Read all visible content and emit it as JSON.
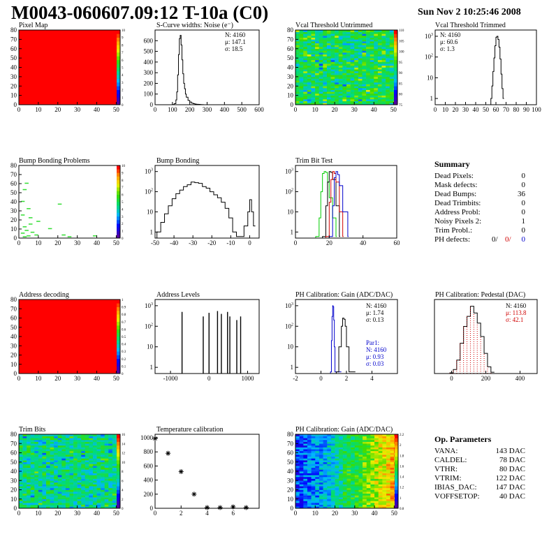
{
  "title": "M0043-060607.09:12 T-10a (C0)",
  "datestamp": "Sun Nov  2 10:25:46 2008",
  "colors": {
    "histo": "#000000",
    "red": "#d00000",
    "blue": "#0000cc",
    "green": "#00cc00",
    "axis": "#000000"
  },
  "panels": {
    "pixel_map": {
      "title": "Pixel Map"
    },
    "scurve": {
      "title": "S-Curve widths: Noise (e⁻)",
      "stats": [
        "N: 4160",
        "μ: 147.1",
        "σ: 18.5"
      ]
    },
    "vcal_untrimmed": {
      "title": "Vcal Threshold Untrimmed"
    },
    "vcal_trimmed": {
      "title": "Vcal Threshold Trimmed",
      "stats": [
        "N: 4160",
        "μ: 60.6",
        "σ:  1.3"
      ]
    },
    "bump_problems": {
      "title": "Bump Bonding Problems"
    },
    "bump_bonding": {
      "title": "Bump Bonding"
    },
    "trim_bit_test": {
      "title": "Trim Bit Test"
    },
    "address_decoding": {
      "title": "Address decoding"
    },
    "address_levels": {
      "title": "Address Levels"
    },
    "ph_gain": {
      "title": "PH Calibration: Gain (ADC/DAC)",
      "stats": [
        "N: 4160",
        "μ: 1.74",
        "σ: 0.13"
      ],
      "stats2": [
        "Par1:",
        "N: 4160",
        "μ: 0.93",
        "σ: 0.03"
      ]
    },
    "ph_pedestal": {
      "title": "PH Calibration: Pedestal (DAC)",
      "stats": [
        "N: 4160",
        "μ: 113.8",
        "σ: 42.1"
      ]
    },
    "trim_bits": {
      "title": "Trim Bits"
    },
    "temperature": {
      "title": "Temperature calibration"
    },
    "ph_gain_map": {
      "title": "PH Calibration: Gain (ADC/DAC)"
    }
  },
  "summary": {
    "title": "Summary",
    "rows": [
      {
        "label": "Dead Pixels:",
        "value": "0"
      },
      {
        "label": "Mask defects:",
        "value": "0"
      },
      {
        "label": "Dead Bumps:",
        "value": "36"
      },
      {
        "label": "Dead Trimbits:",
        "value": "0"
      },
      {
        "label": "Address Probl:",
        "value": "0"
      },
      {
        "label": "Noisy Pixels 2:",
        "value": "1"
      },
      {
        "label": "Trim Probl.:",
        "value": "0"
      }
    ],
    "ph_defects": {
      "label": "PH defects:",
      "v1": "0/",
      "v2": "0/",
      "v3": "0"
    }
  },
  "op_parameters": {
    "title": "Op. Parameters",
    "rows": [
      {
        "label": "VANA:",
        "value": "143 DAC"
      },
      {
        "label": "CALDEL:",
        "value": "78 DAC"
      },
      {
        "label": "VTHR:",
        "value": "80 DAC"
      },
      {
        "label": "VTRIM:",
        "value": "122 DAC"
      },
      {
        "label": "IBIAS_DAC:",
        "value": "147 DAC"
      },
      {
        "label": "VOFFSETOP:",
        "value": "40 DAC"
      }
    ]
  },
  "chart_data": [
    {
      "id": "pixel_map",
      "type": "heatmap",
      "title": "Pixel Map",
      "xlim": [
        0,
        52
      ],
      "ylim": [
        0,
        80
      ],
      "xticks": [
        0,
        10,
        20,
        30,
        40,
        50
      ],
      "yticks": [
        0,
        10,
        20,
        30,
        40,
        50,
        60,
        70,
        80
      ],
      "uniform_value": 10,
      "zlim": [
        0,
        10
      ],
      "zticks": [
        0,
        1,
        2,
        3,
        4,
        5,
        6,
        7,
        8,
        9,
        10
      ]
    },
    {
      "id": "scurve",
      "type": "line",
      "title": "S-Curve widths: Noise (e⁻)",
      "xlim": [
        0,
        600
      ],
      "ylim": [
        0,
        700
      ],
      "xticks": [
        0,
        100,
        200,
        300,
        400,
        500,
        600
      ],
      "yticks": [
        0,
        100,
        200,
        300,
        400,
        500,
        600
      ],
      "x": [
        90,
        100,
        110,
        120,
        125,
        130,
        135,
        140,
        145,
        150,
        155,
        160,
        165,
        170,
        175,
        180,
        190,
        200,
        210,
        220,
        230,
        240,
        250,
        260,
        270,
        280
      ],
      "y": [
        0,
        2,
        10,
        45,
        120,
        280,
        470,
        620,
        650,
        560,
        420,
        290,
        200,
        150,
        100,
        70,
        40,
        25,
        15,
        10,
        6,
        4,
        3,
        2,
        1,
        0
      ]
    },
    {
      "id": "vcal_untrimmed",
      "type": "heatmap",
      "title": "Vcal Threshold Untrimmed",
      "xlim": [
        0,
        52
      ],
      "ylim": [
        0,
        80
      ],
      "xticks": [
        0,
        10,
        20,
        30,
        40,
        50
      ],
      "yticks": [
        0,
        10,
        20,
        30,
        40,
        50,
        60,
        70,
        80
      ],
      "zlim": [
        75,
        110
      ],
      "zticks": [
        75,
        80,
        85,
        90,
        95,
        100,
        105,
        110
      ],
      "mean": 92,
      "spread": 5
    },
    {
      "id": "vcal_trimmed",
      "type": "line",
      "log_y": true,
      "title": "Vcal Threshold Trimmed",
      "xlim": [
        0,
        100
      ],
      "ylim": [
        0.5,
        2000
      ],
      "xticks": [
        0,
        10,
        20,
        30,
        40,
        50,
        60,
        70,
        80,
        90,
        100
      ],
      "yticks": [
        1,
        10,
        100,
        1000
      ],
      "x": [
        55,
        56,
        57,
        58,
        59,
        60,
        61,
        62,
        63,
        64,
        65,
        66,
        67
      ],
      "y": [
        1,
        4,
        20,
        90,
        350,
        900,
        1000,
        700,
        300,
        80,
        15,
        3,
        1
      ]
    },
    {
      "id": "bump_problems",
      "type": "heatmap",
      "title": "Bump Bonding Problems",
      "xlim": [
        0,
        52
      ],
      "ylim": [
        0,
        80
      ],
      "xticks": [
        0,
        10,
        20,
        30,
        40,
        50
      ],
      "yticks": [
        0,
        10,
        20,
        30,
        40,
        50,
        60,
        70,
        80
      ],
      "zlim": [
        0,
        10
      ],
      "zticks": [
        0,
        1,
        2,
        3,
        4,
        5,
        6,
        7,
        8,
        9,
        10
      ],
      "points": [
        [
          2,
          53
        ],
        [
          3,
          60
        ],
        [
          1,
          40
        ],
        [
          20,
          37
        ],
        [
          4,
          32
        ],
        [
          1,
          25
        ],
        [
          5,
          22
        ],
        [
          9,
          18
        ],
        [
          15,
          10
        ],
        [
          5,
          15
        ],
        [
          2,
          12
        ],
        [
          3,
          8
        ],
        [
          1,
          5
        ],
        [
          6,
          6
        ],
        [
          8,
          3
        ],
        [
          38,
          2
        ],
        [
          22,
          3
        ],
        [
          25,
          1
        ],
        [
          2,
          1
        ],
        [
          4,
          2
        ]
      ]
    },
    {
      "id": "bump_bonding",
      "type": "line",
      "log_y": true,
      "title": "Bump Bonding",
      "xlim": [
        -50,
        5
      ],
      "ylim": [
        0.5,
        2000
      ],
      "xticks": [
        -50,
        -40,
        -30,
        -20,
        -10,
        0
      ],
      "yticks": [
        1,
        10,
        100,
        1000
      ],
      "x": [
        -49,
        -47,
        -45,
        -43,
        -41,
        -39,
        -37,
        -35,
        -33,
        -31,
        -29,
        -27,
        -25,
        -23,
        -21,
        -19,
        -17,
        -15,
        -13,
        -11,
        -9,
        -7,
        -5,
        -3,
        -1,
        0,
        1,
        2
      ],
      "y": [
        1,
        3,
        8,
        20,
        45,
        80,
        120,
        180,
        220,
        300,
        280,
        260,
        180,
        150,
        100,
        70,
        50,
        30,
        15,
        5,
        1,
        0.6,
        0.6,
        2,
        10,
        40,
        10,
        2
      ]
    },
    {
      "id": "trim_bit_test",
      "type": "line",
      "log_y": true,
      "title": "Trim Bit Test",
      "xlim": [
        0,
        60
      ],
      "ylim": [
        0.5,
        2000
      ],
      "xticks": [
        0,
        20,
        40,
        60
      ],
      "yticks": [
        1,
        10,
        100,
        1000
      ],
      "series": [
        {
          "color": "#00cc00",
          "x": [
            12,
            14,
            15,
            16,
            17,
            18,
            19,
            20,
            22,
            24
          ],
          "y": [
            0.6,
            5,
            100,
            800,
            1000,
            900,
            300,
            50,
            5,
            0.6
          ]
        },
        {
          "color": "#000000",
          "x": [
            16,
            18,
            19,
            20,
            21,
            22,
            24,
            26
          ],
          "y": [
            0.6,
            20,
            300,
            1000,
            900,
            400,
            20,
            0.6
          ]
        },
        {
          "color": "#d00000",
          "x": [
            18,
            20,
            21,
            22,
            23,
            24,
            26,
            28
          ],
          "y": [
            0.6,
            30,
            400,
            1000,
            800,
            300,
            10,
            0.6
          ]
        },
        {
          "color": "#0000cc",
          "x": [
            20,
            22,
            23,
            24,
            25,
            26,
            28,
            31
          ],
          "y": [
            0.6,
            20,
            500,
            1000,
            700,
            200,
            10,
            0.6
          ]
        }
      ]
    },
    {
      "id": "address_decoding",
      "type": "heatmap",
      "title": "Address decoding",
      "xlim": [
        0,
        52
      ],
      "ylim": [
        0,
        80
      ],
      "xticks": [
        0,
        10,
        20,
        30,
        40,
        50
      ],
      "yticks": [
        0,
        10,
        20,
        30,
        40,
        50,
        60,
        70,
        80
      ],
      "uniform_value": 1,
      "zlim": [
        0,
        1
      ],
      "zticks": [
        0,
        0.1,
        0.2,
        0.3,
        0.4,
        0.5,
        0.6,
        0.7,
        0.8,
        0.9,
        1
      ]
    },
    {
      "id": "address_levels",
      "type": "line",
      "log_y": true,
      "title": "Address Levels",
      "xlim": [
        -1400,
        1300
      ],
      "ylim": [
        0.5,
        2000
      ],
      "xticks": [
        -1000,
        0,
        1000
      ],
      "yticks": [
        1,
        10,
        100,
        1000
      ],
      "spikes": [
        [
          -700,
          500
        ],
        [
          -150,
          300
        ],
        [
          0,
          450
        ],
        [
          220,
          550
        ],
        [
          320,
          400
        ],
        [
          480,
          500
        ],
        [
          540,
          300
        ],
        [
          720,
          200
        ],
        [
          820,
          300
        ]
      ]
    },
    {
      "id": "ph_gain",
      "type": "line",
      "log_y": true,
      "title": "PH Calibration: Gain (ADC/DAC)",
      "xlim": [
        -2,
        6
      ],
      "ylim": [
        0.5,
        2000
      ],
      "xticks": [
        -2,
        0,
        2,
        4
      ],
      "yticks": [
        1,
        10,
        100,
        1000
      ],
      "series": [
        {
          "color": "#0000cc",
          "x": [
            0.75,
            0.82,
            0.87,
            0.92,
            0.95,
            1.0,
            1.05,
            1.1
          ],
          "y": [
            0.6,
            20,
            300,
            1000,
            900,
            200,
            10,
            0.6
          ]
        },
        {
          "color": "#000000",
          "x": [
            1.2,
            1.4,
            1.6,
            1.7,
            1.8,
            1.9,
            2.0,
            2.2
          ],
          "y": [
            0.6,
            10,
            100,
            250,
            220,
            100,
            10,
            0.6
          ]
        }
      ]
    },
    {
      "id": "ph_pedestal",
      "type": "line",
      "title": "PH Calibration: Pedestal (DAC)",
      "xlim": [
        -100,
        500
      ],
      "ylim": [
        0,
        110
      ],
      "xticks": [
        0,
        200,
        400
      ],
      "x": [
        -10,
        10,
        30,
        50,
        70,
        90,
        110,
        130,
        150,
        170,
        190,
        210,
        230
      ],
      "y": [
        1,
        6,
        20,
        45,
        70,
        85,
        100,
        90,
        75,
        55,
        30,
        10,
        2
      ]
    },
    {
      "id": "trim_bits",
      "type": "heatmap",
      "title": "Trim Bits",
      "xlim": [
        0,
        52
      ],
      "ylim": [
        0,
        80
      ],
      "xticks": [
        0,
        10,
        20,
        30,
        40,
        50
      ],
      "yticks": [
        0,
        10,
        20,
        30,
        40,
        50,
        60,
        70,
        80
      ],
      "zlim": [
        0,
        16
      ],
      "zticks": [
        0,
        2,
        4,
        6,
        8,
        10,
        12,
        14,
        16
      ],
      "mean": 7,
      "spread": 2
    },
    {
      "id": "temperature",
      "type": "scatter",
      "title": "Temperature calibration",
      "xlim": [
        0,
        8
      ],
      "ylim": [
        0,
        1050
      ],
      "xticks": [
        0,
        2,
        4,
        6
      ],
      "yticks": [
        0,
        200,
        400,
        600,
        800,
        1000
      ],
      "x": [
        0,
        1,
        2,
        3,
        4,
        5,
        6,
        7
      ],
      "y": [
        990,
        780,
        520,
        200,
        10,
        10,
        20,
        10
      ]
    },
    {
      "id": "ph_gain_map",
      "type": "heatmap",
      "title": "PH Calibration: Gain (ADC/DAC)",
      "xlim": [
        0,
        52
      ],
      "ylim": [
        0,
        80
      ],
      "xticks": [
        0,
        10,
        20,
        30,
        40,
        50
      ],
      "yticks": [
        0,
        10,
        20,
        30,
        40,
        50,
        60,
        70,
        80
      ],
      "zlim": [
        0.8,
        2.2
      ],
      "zticks": [
        0.8,
        1,
        1.2,
        1.4,
        1.6,
        1.8,
        2,
        2.2
      ],
      "gradient": "columns"
    }
  ]
}
